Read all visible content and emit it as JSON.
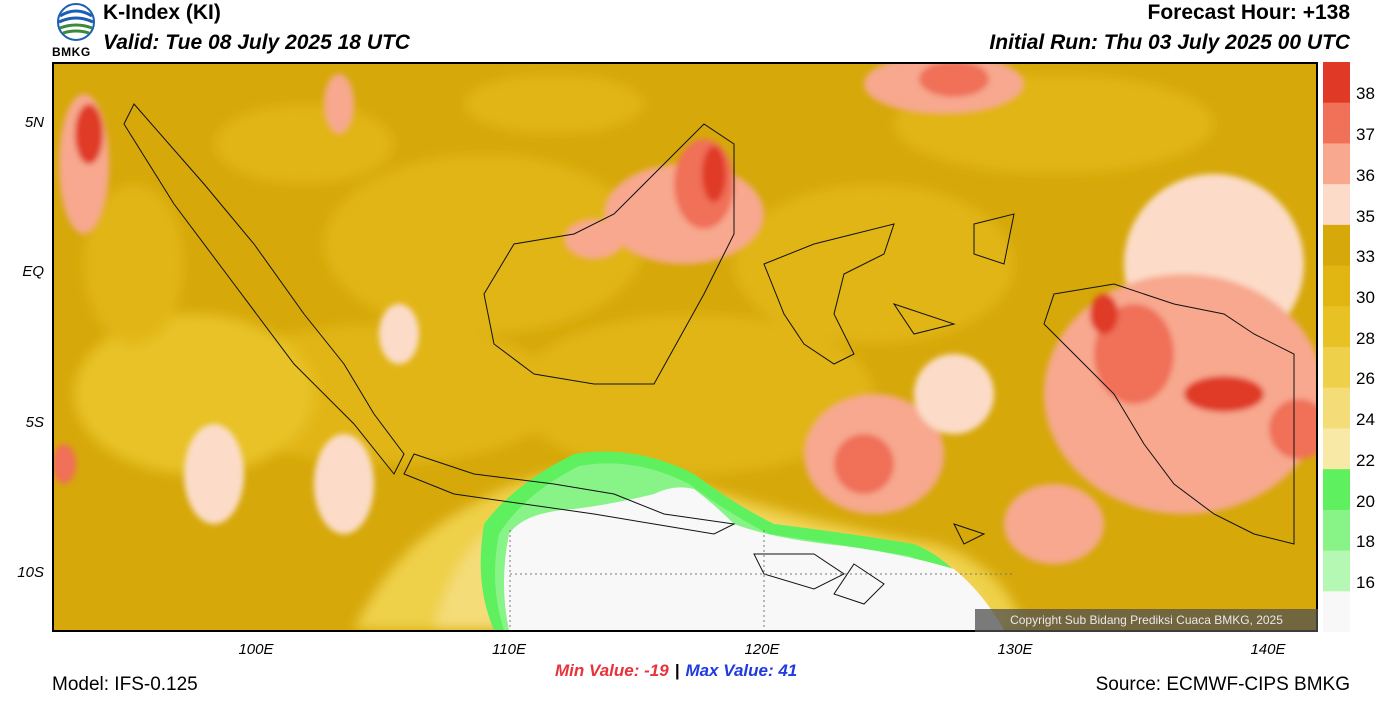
{
  "header": {
    "logo_text": "BMKG",
    "title": "K-Index (KI)",
    "valid": "Valid: Tue 08 July 2025 18 UTC",
    "forecast_hour": "Forecast Hour: +138",
    "initial_run": "Initial Run: Thu 03 July 2025 00 UTC"
  },
  "map": {
    "y_labels": [
      "5N",
      "EQ",
      "5S",
      "10S"
    ],
    "x_labels": [
      "100E",
      "110E",
      "120E",
      "130E",
      "140E"
    ],
    "copyright": "Copyright Sub Bidang Prediksi Cuaca BMKG, 2025"
  },
  "colorbar": {
    "labels": [
      "38",
      "37",
      "36",
      "35",
      "33",
      "30",
      "28",
      "26",
      "24",
      "22",
      "20",
      "18",
      "16"
    ],
    "colors": [
      "#e03a26",
      "#f07058",
      "#f7a88e",
      "#fcdcc8",
      "#d6a80a",
      "#e1b512",
      "#e8c225",
      "#efd04a",
      "#f4dc78",
      "#f8e9a6",
      "#5ef05e",
      "#88f488",
      "#b4f8b4",
      "#f8f8f8"
    ]
  },
  "footer": {
    "min_value": "Min Value: -19",
    "separator": "|",
    "max_value": "Max Value:  41",
    "model": "Model: IFS-0.125",
    "source": "Source: ECMWF-CIPS BMKG"
  }
}
